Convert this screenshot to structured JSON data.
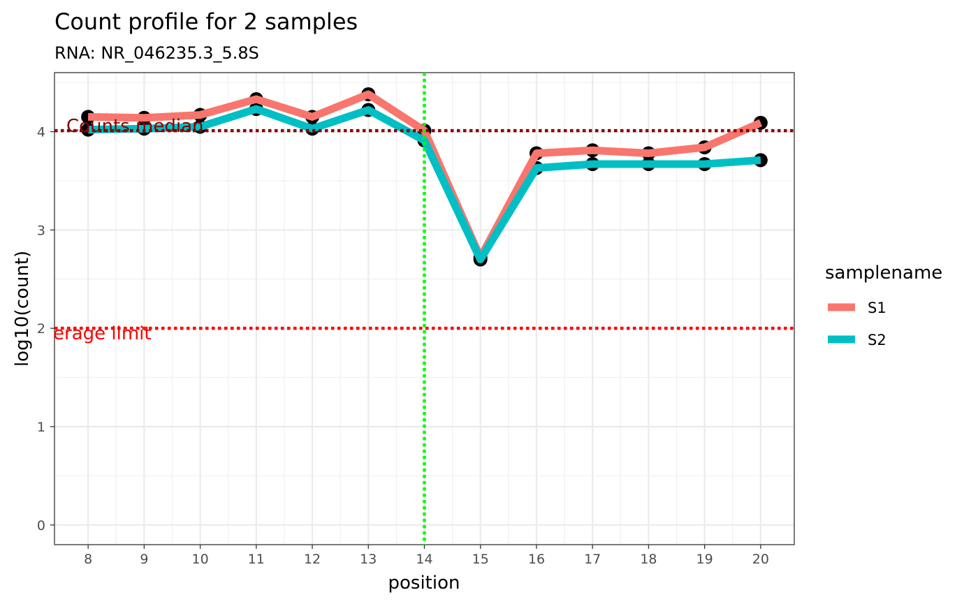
{
  "chart_data": {
    "type": "line",
    "title": "Count profile for 2 samples",
    "subtitle": "RNA: NR_046235.3_5.8S",
    "xlabel": "position",
    "ylabel": "log10(count)",
    "x": [
      8,
      9,
      10,
      11,
      12,
      13,
      14,
      15,
      16,
      17,
      18,
      19,
      20
    ],
    "x_ticks": [
      "8",
      "9",
      "10",
      "11",
      "12",
      "13",
      "14",
      "15",
      "16",
      "17",
      "18",
      "19",
      "20"
    ],
    "y_ticks": [
      "0",
      "1",
      "2",
      "3",
      "4"
    ],
    "xlim": [
      7.4,
      20.6
    ],
    "ylim": [
      -0.2,
      4.6
    ],
    "grid": true,
    "series": [
      {
        "name": "S1",
        "color": "#F8766D",
        "values": [
          4.15,
          4.14,
          4.17,
          4.33,
          4.15,
          4.38,
          4.01,
          2.72,
          3.78,
          3.81,
          3.78,
          3.84,
          4.09
        ]
      },
      {
        "name": "S2",
        "color": "#00BFC4",
        "values": [
          4.02,
          4.03,
          4.05,
          4.23,
          4.03,
          4.22,
          3.91,
          2.7,
          3.63,
          3.67,
          3.67,
          3.67,
          3.71
        ]
      }
    ],
    "reference_lines": [
      {
        "orientation": "horizontal",
        "value": 4.01,
        "label": "Counts median",
        "color": "#8B0000",
        "style": "dotted"
      },
      {
        "orientation": "horizontal",
        "value": 2.0,
        "label": "erage limit",
        "color": "#FF0000",
        "style": "dotted"
      },
      {
        "orientation": "vertical",
        "value": 14,
        "label": "",
        "color": "#00FF00",
        "style": "dotted"
      }
    ],
    "legend": {
      "title": "samplename",
      "placement": "right"
    }
  }
}
